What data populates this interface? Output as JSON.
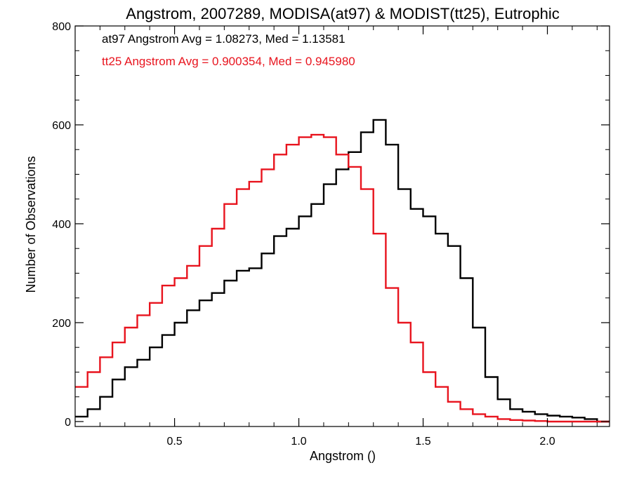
{
  "chart_data": {
    "type": "line",
    "title": "Angstrom, 2007289, MODISA(at97) & MODIST(tt25), Eutrophic",
    "xlabel": "Angstrom ()",
    "ylabel": "Number of Observations",
    "xlim": [
      0.1,
      2.25
    ],
    "ylim": [
      -10,
      800
    ],
    "x_ticks": [
      0.5,
      1.0,
      1.5,
      2.0
    ],
    "x_tick_labels": [
      "0.5",
      "1.0",
      "1.5",
      "2.0"
    ],
    "y_ticks": [
      0,
      200,
      400,
      600,
      800
    ],
    "y_tick_labels": [
      "0",
      "200",
      "400",
      "600",
      "800"
    ],
    "annotations": [
      {
        "text": "at97 Angstrom Avg = 1.08273, Med = 1.13581",
        "color": "#000000"
      },
      {
        "text": "tt25 Angstrom Avg = 0.900354, Med = 0.945980",
        "color": "#e8141e"
      }
    ],
    "series": [
      {
        "color": "#000000",
        "x": [
          0.1,
          0.15,
          0.2,
          0.25,
          0.3,
          0.35,
          0.4,
          0.45,
          0.5,
          0.55,
          0.6,
          0.65,
          0.7,
          0.75,
          0.8,
          0.85,
          0.9,
          0.95,
          1.0,
          1.05,
          1.1,
          1.15,
          1.2,
          1.25,
          1.3,
          1.35,
          1.4,
          1.45,
          1.5,
          1.55,
          1.6,
          1.65,
          1.7,
          1.75,
          1.8,
          1.85,
          1.9,
          1.95,
          2.0,
          2.05,
          2.1,
          2.15,
          2.2,
          2.25
        ],
        "y": [
          10,
          25,
          50,
          85,
          110,
          125,
          150,
          175,
          200,
          225,
          245,
          260,
          285,
          305,
          310,
          340,
          375,
          390,
          415,
          440,
          480,
          510,
          545,
          585,
          610,
          560,
          470,
          430,
          415,
          380,
          355,
          290,
          190,
          90,
          45,
          25,
          20,
          15,
          12,
          10,
          8,
          5,
          0,
          0
        ]
      },
      {
        "color": "#e8141e",
        "x": [
          0.1,
          0.15,
          0.2,
          0.25,
          0.3,
          0.35,
          0.4,
          0.45,
          0.5,
          0.55,
          0.6,
          0.65,
          0.7,
          0.75,
          0.8,
          0.85,
          0.9,
          0.95,
          1.0,
          1.05,
          1.1,
          1.15,
          1.2,
          1.25,
          1.3,
          1.35,
          1.4,
          1.45,
          1.5,
          1.55,
          1.6,
          1.65,
          1.7,
          1.75,
          1.8,
          1.85,
          1.9,
          1.95,
          2.0,
          2.05,
          2.1,
          2.15,
          2.2,
          2.25
        ],
        "y": [
          70,
          100,
          130,
          160,
          190,
          215,
          240,
          275,
          290,
          315,
          355,
          390,
          440,
          470,
          485,
          510,
          540,
          560,
          575,
          580,
          575,
          540,
          515,
          470,
          380,
          270,
          200,
          160,
          100,
          70,
          40,
          25,
          15,
          10,
          5,
          3,
          2,
          1,
          0,
          0,
          0,
          0,
          0,
          0
        ]
      }
    ]
  }
}
